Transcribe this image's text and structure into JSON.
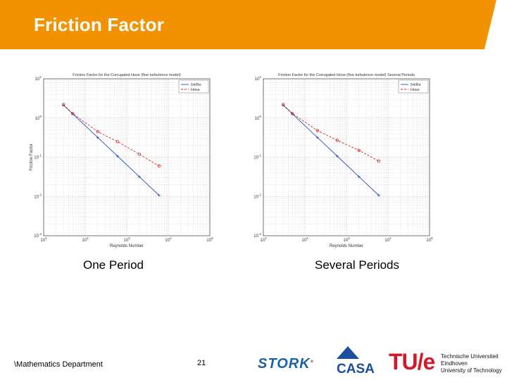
{
  "slide": {
    "title": "Friction Factor",
    "colors": {
      "banner": "#f39200",
      "banner_light": "#f8b75a"
    },
    "footer": {
      "department": "\\Mathematics Department",
      "page_number": "21"
    },
    "logos": {
      "stork": "STORK",
      "casa": "CASA",
      "tue_mark": "TU/e",
      "tue_lines": [
        "Technische Universiteit",
        "Eindhoven",
        "University of Technology"
      ]
    }
  },
  "captions": {
    "left": "One Period",
    "right": "Several Periods"
  },
  "chart_data": [
    {
      "type": "line",
      "title": "Friction Factor for the Corrugated Hose (fine turbulence model)",
      "xlabel": "Reynolds Number",
      "ylabel": "Friction Factor",
      "xscale": "log",
      "yscale": "log",
      "xlim": [
        10,
        100000
      ],
      "ylim": [
        0.001,
        10
      ],
      "xticks": [
        10,
        100,
        1000,
        10000,
        100000
      ],
      "xtick_labels": [
        "10^1",
        "10^2",
        "10^3",
        "10^4",
        "10^5"
      ],
      "yticks": [
        10,
        1,
        0.1,
        0.01,
        0.001
      ],
      "ytick_labels": [
        "10^1",
        "10^0",
        "10^-1",
        "10^-2",
        "10^-3"
      ],
      "grid": true,
      "legend": "top-right",
      "series": [
        {
          "name": "64/Re",
          "color": "#2a52be",
          "marker": "+",
          "dash": "solid",
          "x": [
            30,
            50,
            200,
            600,
            2000,
            6000
          ],
          "y": [
            2.13,
            1.28,
            0.32,
            0.107,
            0.032,
            0.0107
          ]
        },
        {
          "name": "Hose",
          "color": "#d62728",
          "marker": "o",
          "dash": "dashed",
          "x": [
            30,
            50,
            200,
            600,
            2000,
            6000
          ],
          "y": [
            2.2,
            1.3,
            0.45,
            0.25,
            0.12,
            0.06
          ]
        }
      ]
    },
    {
      "type": "line",
      "title": "Friction Factor for the Corrugated Hose (fine turbulence model) Several Periods",
      "xlabel": "Reynolds Number",
      "ylabel": "",
      "xscale": "log",
      "yscale": "log",
      "xlim": [
        10,
        100000
      ],
      "ylim": [
        0.001,
        10
      ],
      "xticks": [
        10,
        100,
        1000,
        10000,
        100000
      ],
      "xtick_labels": [
        "10^1",
        "10^2",
        "10^3",
        "10^4",
        "10^5"
      ],
      "yticks": [
        10,
        1,
        0.1,
        0.01,
        0.001
      ],
      "ytick_labels": [
        "10^1",
        "10^0",
        "10^-1",
        "10^-2",
        "10^-3"
      ],
      "grid": true,
      "legend": "top-right",
      "series": [
        {
          "name": "64/Re",
          "color": "#2a52be",
          "marker": "+",
          "dash": "solid",
          "x": [
            30,
            50,
            200,
            600,
            2000,
            6000
          ],
          "y": [
            2.13,
            1.28,
            0.32,
            0.107,
            0.032,
            0.0107
          ]
        },
        {
          "name": "Hose",
          "color": "#d62728",
          "marker": "o",
          "dash": "dashed",
          "x": [
            30,
            50,
            200,
            600,
            2000,
            6000
          ],
          "y": [
            2.2,
            1.3,
            0.48,
            0.27,
            0.15,
            0.08
          ]
        }
      ]
    }
  ]
}
